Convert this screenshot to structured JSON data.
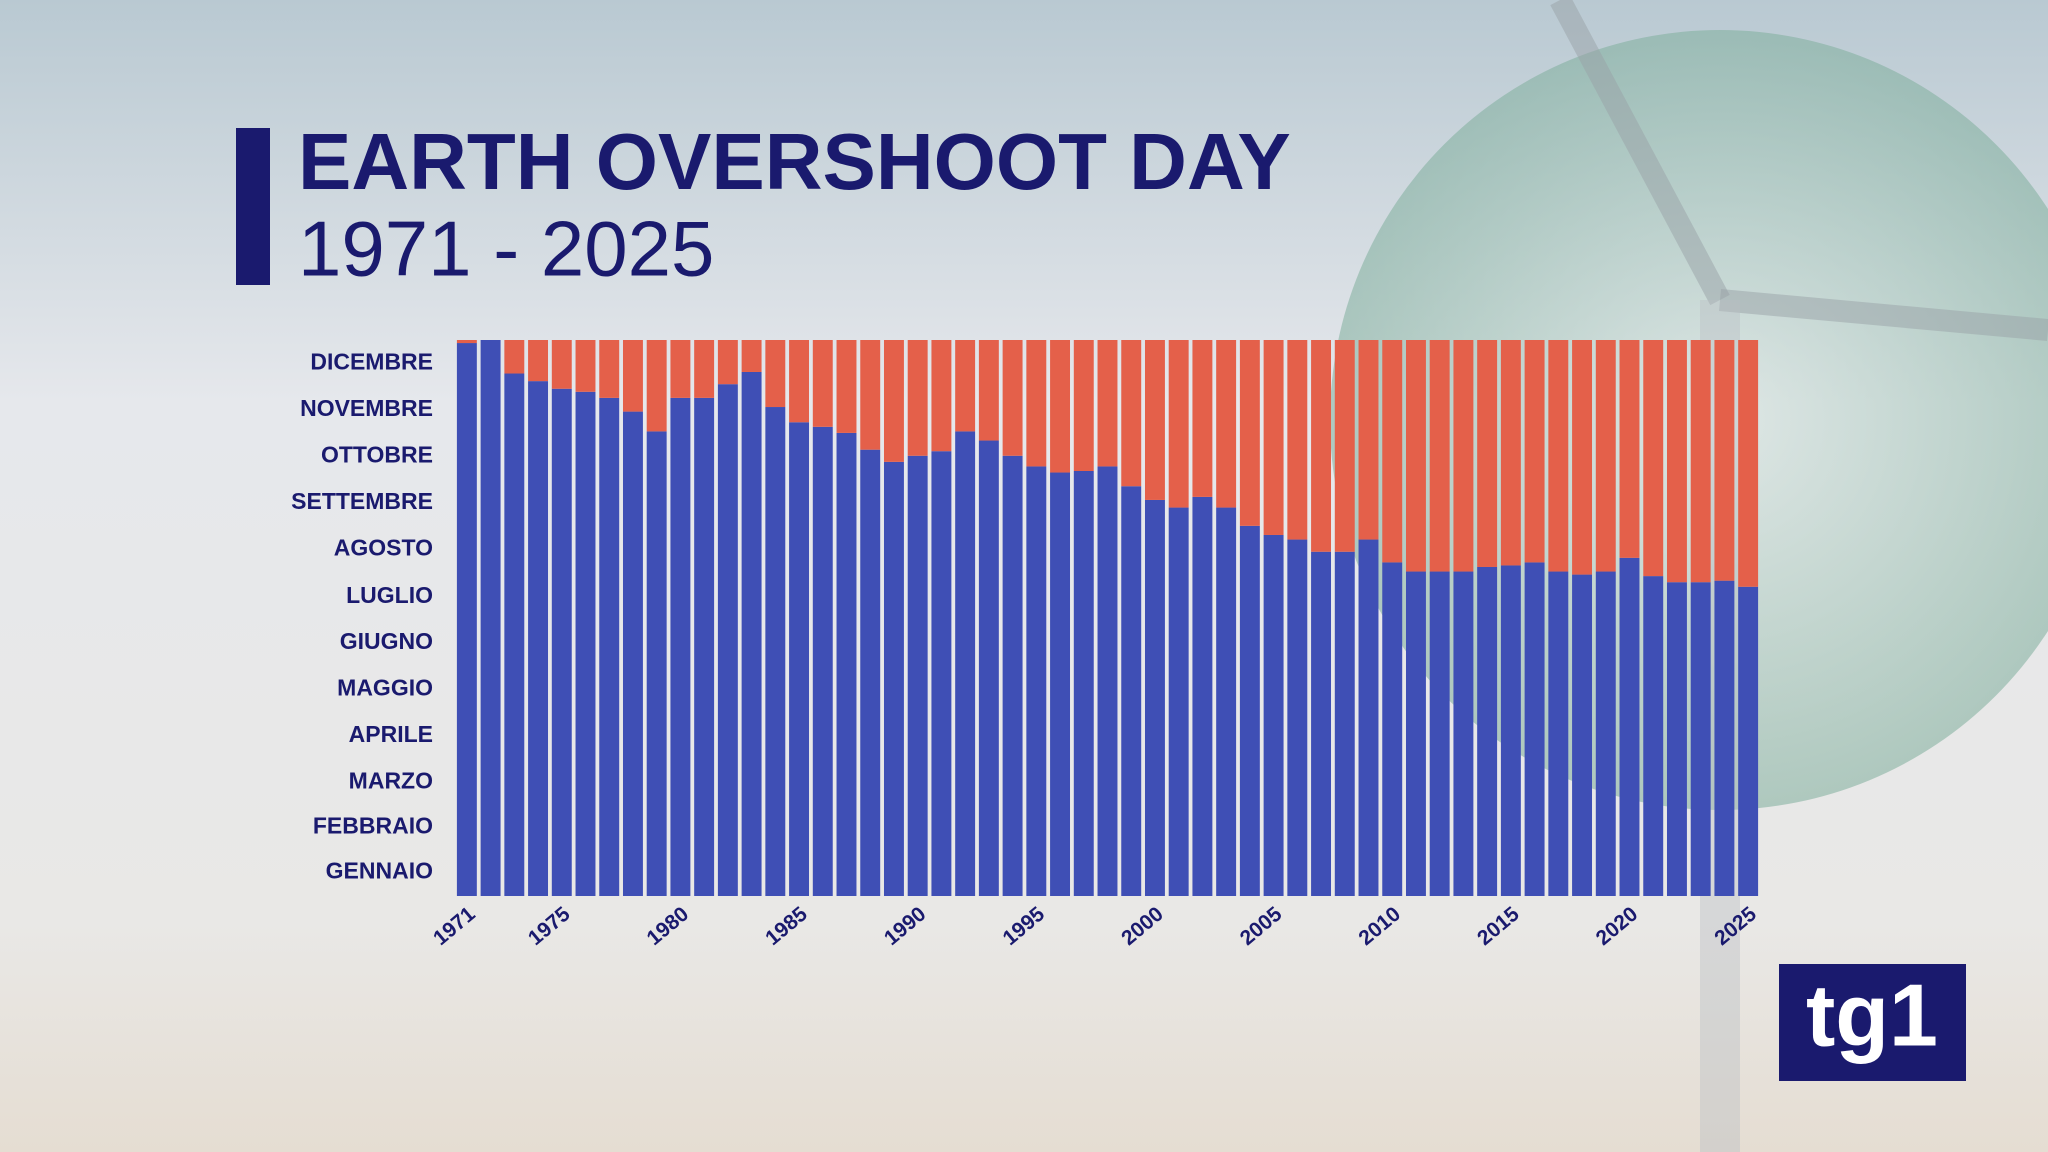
{
  "chart_data": {
    "type": "bar",
    "stacked": true,
    "title": "EARTH OVERSHOOT DAY",
    "subtitle": "1971 - 2025",
    "categories": [
      "1971",
      null,
      null,
      null,
      "1975",
      null,
      null,
      null,
      null,
      "1980",
      null,
      null,
      null,
      null,
      "1985",
      null,
      null,
      null,
      null,
      "1990",
      null,
      null,
      null,
      null,
      "1995",
      null,
      null,
      null,
      null,
      "2000",
      null,
      null,
      null,
      null,
      "2005",
      null,
      null,
      null,
      null,
      "2010",
      null,
      null,
      null,
      null,
      "2015",
      null,
      null,
      null,
      null,
      "2020",
      null,
      null,
      null,
      null,
      "2025"
    ],
    "series": [
      {
        "color": "#3f4fb5",
        "values": [
          363,
          365,
          343,
          338,
          333,
          331,
          327,
          318,
          305,
          327,
          327,
          336,
          344,
          321,
          311,
          308,
          304,
          293,
          285,
          289,
          292,
          305,
          299,
          289,
          282,
          278,
          279,
          282,
          269,
          260,
          255,
          262,
          255,
          243,
          237,
          234,
          226,
          226,
          234,
          219,
          213,
          213,
          213,
          216,
          217,
          219,
          213,
          211,
          213,
          222,
          210,
          206,
          206,
          207,
          203
        ]
      },
      {
        "color": "#e4604a",
        "values": [
          2,
          0,
          22,
          27,
          32,
          34,
          38,
          47,
          60,
          38,
          38,
          29,
          21,
          44,
          54,
          57,
          61,
          72,
          80,
          76,
          73,
          60,
          66,
          76,
          83,
          87,
          86,
          83,
          96,
          105,
          110,
          103,
          110,
          122,
          128,
          131,
          139,
          139,
          131,
          146,
          152,
          152,
          152,
          149,
          148,
          146,
          152,
          154,
          152,
          143,
          155,
          159,
          159,
          158,
          162
        ]
      }
    ],
    "ylim": [
      0,
      365
    ],
    "yticks": [
      {
        "value": 15.5,
        "label": "GENNAIO"
      },
      {
        "value": 45,
        "label": "FEBBRAIO"
      },
      {
        "value": 74.5,
        "label": "MARZO"
      },
      {
        "value": 105,
        "label": "APRILE"
      },
      {
        "value": 135.5,
        "label": "MAGGIO"
      },
      {
        "value": 166,
        "label": "GIUGNO"
      },
      {
        "value": 196.5,
        "label": "LUGLIO"
      },
      {
        "value": 227.5,
        "label": "AGOSTO"
      },
      {
        "value": 258,
        "label": "SETTEMBRE"
      },
      {
        "value": 288.5,
        "label": "OTTOBRE"
      },
      {
        "value": 319,
        "label": "NOVEMBRE"
      },
      {
        "value": 349.5,
        "label": "DICEMBRE"
      }
    ]
  },
  "logo": "tg1"
}
